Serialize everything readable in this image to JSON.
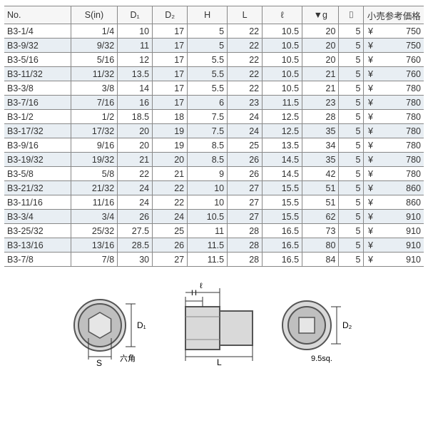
{
  "table": {
    "headers": [
      "No.",
      "S(in)",
      "D₁",
      "D₂",
      "H",
      "L",
      "ℓ",
      "▼g",
      "⌷",
      "小売参考価格"
    ],
    "currency": "¥",
    "rows": [
      {
        "no": "B3-1/4",
        "s": "1/4",
        "d1": "10",
        "d2": "17",
        "h": "5",
        "l": "22",
        "ell": "10.5",
        "g": "20",
        "pkg": "5",
        "price": "750"
      },
      {
        "no": "B3-9/32",
        "s": "9/32",
        "d1": "11",
        "d2": "17",
        "h": "5",
        "l": "22",
        "ell": "10.5",
        "g": "20",
        "pkg": "5",
        "price": "750"
      },
      {
        "no": "B3-5/16",
        "s": "5/16",
        "d1": "12",
        "d2": "17",
        "h": "5.5",
        "l": "22",
        "ell": "10.5",
        "g": "20",
        "pkg": "5",
        "price": "760"
      },
      {
        "no": "B3-11/32",
        "s": "11/32",
        "d1": "13.5",
        "d2": "17",
        "h": "5.5",
        "l": "22",
        "ell": "10.5",
        "g": "21",
        "pkg": "5",
        "price": "760"
      },
      {
        "no": "B3-3/8",
        "s": "3/8",
        "d1": "14",
        "d2": "17",
        "h": "5.5",
        "l": "22",
        "ell": "10.5",
        "g": "21",
        "pkg": "5",
        "price": "780"
      },
      {
        "no": "B3-7/16",
        "s": "7/16",
        "d1": "16",
        "d2": "17",
        "h": "6",
        "l": "23",
        "ell": "11.5",
        "g": "23",
        "pkg": "5",
        "price": "780"
      },
      {
        "no": "B3-1/2",
        "s": "1/2",
        "d1": "18.5",
        "d2": "18",
        "h": "7.5",
        "l": "24",
        "ell": "12.5",
        "g": "28",
        "pkg": "5",
        "price": "780"
      },
      {
        "no": "B3-17/32",
        "s": "17/32",
        "d1": "20",
        "d2": "19",
        "h": "7.5",
        "l": "24",
        "ell": "12.5",
        "g": "35",
        "pkg": "5",
        "price": "780"
      },
      {
        "no": "B3-9/16",
        "s": "9/16",
        "d1": "20",
        "d2": "19",
        "h": "8.5",
        "l": "25",
        "ell": "13.5",
        "g": "34",
        "pkg": "5",
        "price": "780"
      },
      {
        "no": "B3-19/32",
        "s": "19/32",
        "d1": "21",
        "d2": "20",
        "h": "8.5",
        "l": "26",
        "ell": "14.5",
        "g": "35",
        "pkg": "5",
        "price": "780"
      },
      {
        "no": "B3-5/8",
        "s": "5/8",
        "d1": "22",
        "d2": "21",
        "h": "9",
        "l": "26",
        "ell": "14.5",
        "g": "42",
        "pkg": "5",
        "price": "780"
      },
      {
        "no": "B3-21/32",
        "s": "21/32",
        "d1": "24",
        "d2": "22",
        "h": "10",
        "l": "27",
        "ell": "15.5",
        "g": "51",
        "pkg": "5",
        "price": "860"
      },
      {
        "no": "B3-11/16",
        "s": "11/16",
        "d1": "24",
        "d2": "22",
        "h": "10",
        "l": "27",
        "ell": "15.5",
        "g": "51",
        "pkg": "5",
        "price": "860"
      },
      {
        "no": "B3-3/4",
        "s": "3/4",
        "d1": "26",
        "d2": "24",
        "h": "10.5",
        "l": "27",
        "ell": "15.5",
        "g": "62",
        "pkg": "5",
        "price": "910"
      },
      {
        "no": "B3-25/32",
        "s": "25/32",
        "d1": "27.5",
        "d2": "25",
        "h": "11",
        "l": "28",
        "ell": "16.5",
        "g": "73",
        "pkg": "5",
        "price": "910"
      },
      {
        "no": "B3-13/16",
        "s": "13/16",
        "d1": "28.5",
        "d2": "26",
        "h": "11.5",
        "l": "28",
        "ell": "16.5",
        "g": "80",
        "pkg": "5",
        "price": "910"
      },
      {
        "no": "B3-7/8",
        "s": "7/8",
        "d1": "30",
        "d2": "27",
        "h": "11.5",
        "l": "28",
        "ell": "16.5",
        "g": "84",
        "pkg": "5",
        "price": "910"
      }
    ]
  },
  "diagram": {
    "labels": {
      "d1": "D₁",
      "d2": "D₂",
      "s": "S",
      "h": "H",
      "l": "L",
      "ell": "ℓ",
      "hex": "六角",
      "sq": "9.5sq."
    }
  },
  "style": {
    "alt_row_bg": "#e8eef3",
    "border_color": "#888"
  }
}
